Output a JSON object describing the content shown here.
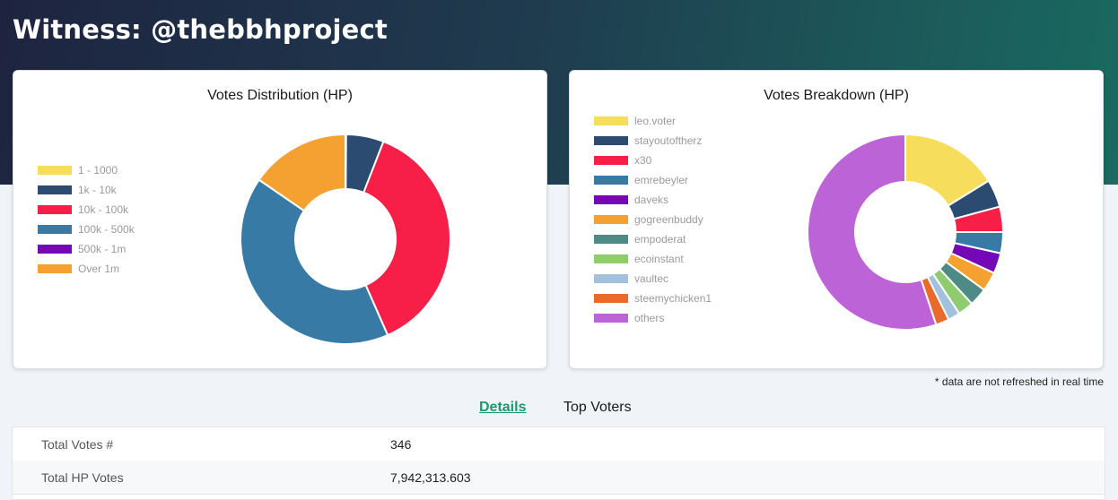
{
  "header": {
    "title": "Witness: @thebbhproject"
  },
  "note": "* data are not refreshed in real time",
  "tabs": [
    {
      "label": "Details",
      "active": true
    },
    {
      "label": "Top Voters",
      "active": false
    }
  ],
  "details": [
    {
      "label": "Total Votes #",
      "value": "346"
    },
    {
      "label": "Total HP Votes",
      "value": "7,942,313.603"
    }
  ],
  "chart_data": [
    {
      "type": "pie",
      "donut": true,
      "title": "Votes Distribution (HP)",
      "legend_position": "left",
      "categories": [
        "1 - 1000",
        "1k - 10k",
        "10k - 100k",
        "100k - 500k",
        "500k - 1m",
        "Over 1m"
      ],
      "values": [
        0.1,
        5.8,
        37.5,
        41.2,
        0,
        15.4
      ],
      "colors": [
        "#f6dd5c",
        "#2b4b70",
        "#f71f47",
        "#387aa6",
        "#7408b6",
        "#f5a131"
      ]
    },
    {
      "type": "pie",
      "donut": true,
      "title": "Votes Breakdown (HP)",
      "legend_position": "left",
      "categories": [
        "leo.voter",
        "stayoutoftherz",
        "x30",
        "emrebeyler",
        "daveks",
        "gogreenbuddy",
        "empoderat",
        "ecoinstant",
        "vaultec",
        "steemychicken1",
        "others"
      ],
      "values": [
        16.2,
        4.6,
        4.2,
        3.5,
        3.4,
        3.2,
        3.0,
        2.6,
        2.0,
        2.2,
        55.1
      ],
      "colors": [
        "#f6dd5c",
        "#2b4b70",
        "#f71f47",
        "#387aa6",
        "#7408b6",
        "#f5a131",
        "#4e8b86",
        "#8fcc70",
        "#a3c1dd",
        "#ea6a2c",
        "#bd63d8"
      ]
    }
  ]
}
